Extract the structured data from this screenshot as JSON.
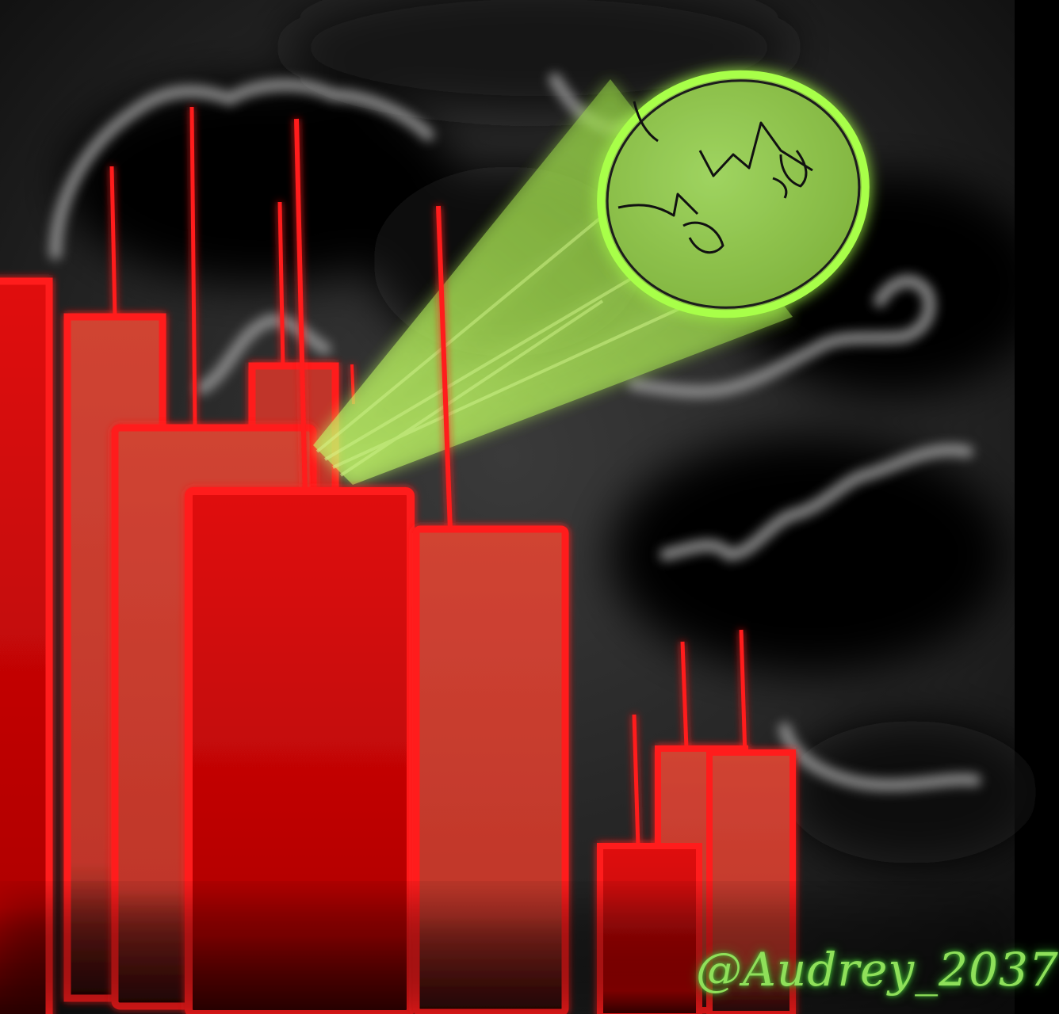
{
  "artwork": {
    "signature": "@Audrey_2037",
    "colors": {
      "sky": "#1a1a1a",
      "cloud_edge": "#9a9a9a",
      "building_fill": "#cc3a2e",
      "building_outline": "#ff1010",
      "signal_fill": "#8dc84a",
      "signal_glow": "#a6ff3a",
      "signature": "#8fe05a"
    }
  }
}
